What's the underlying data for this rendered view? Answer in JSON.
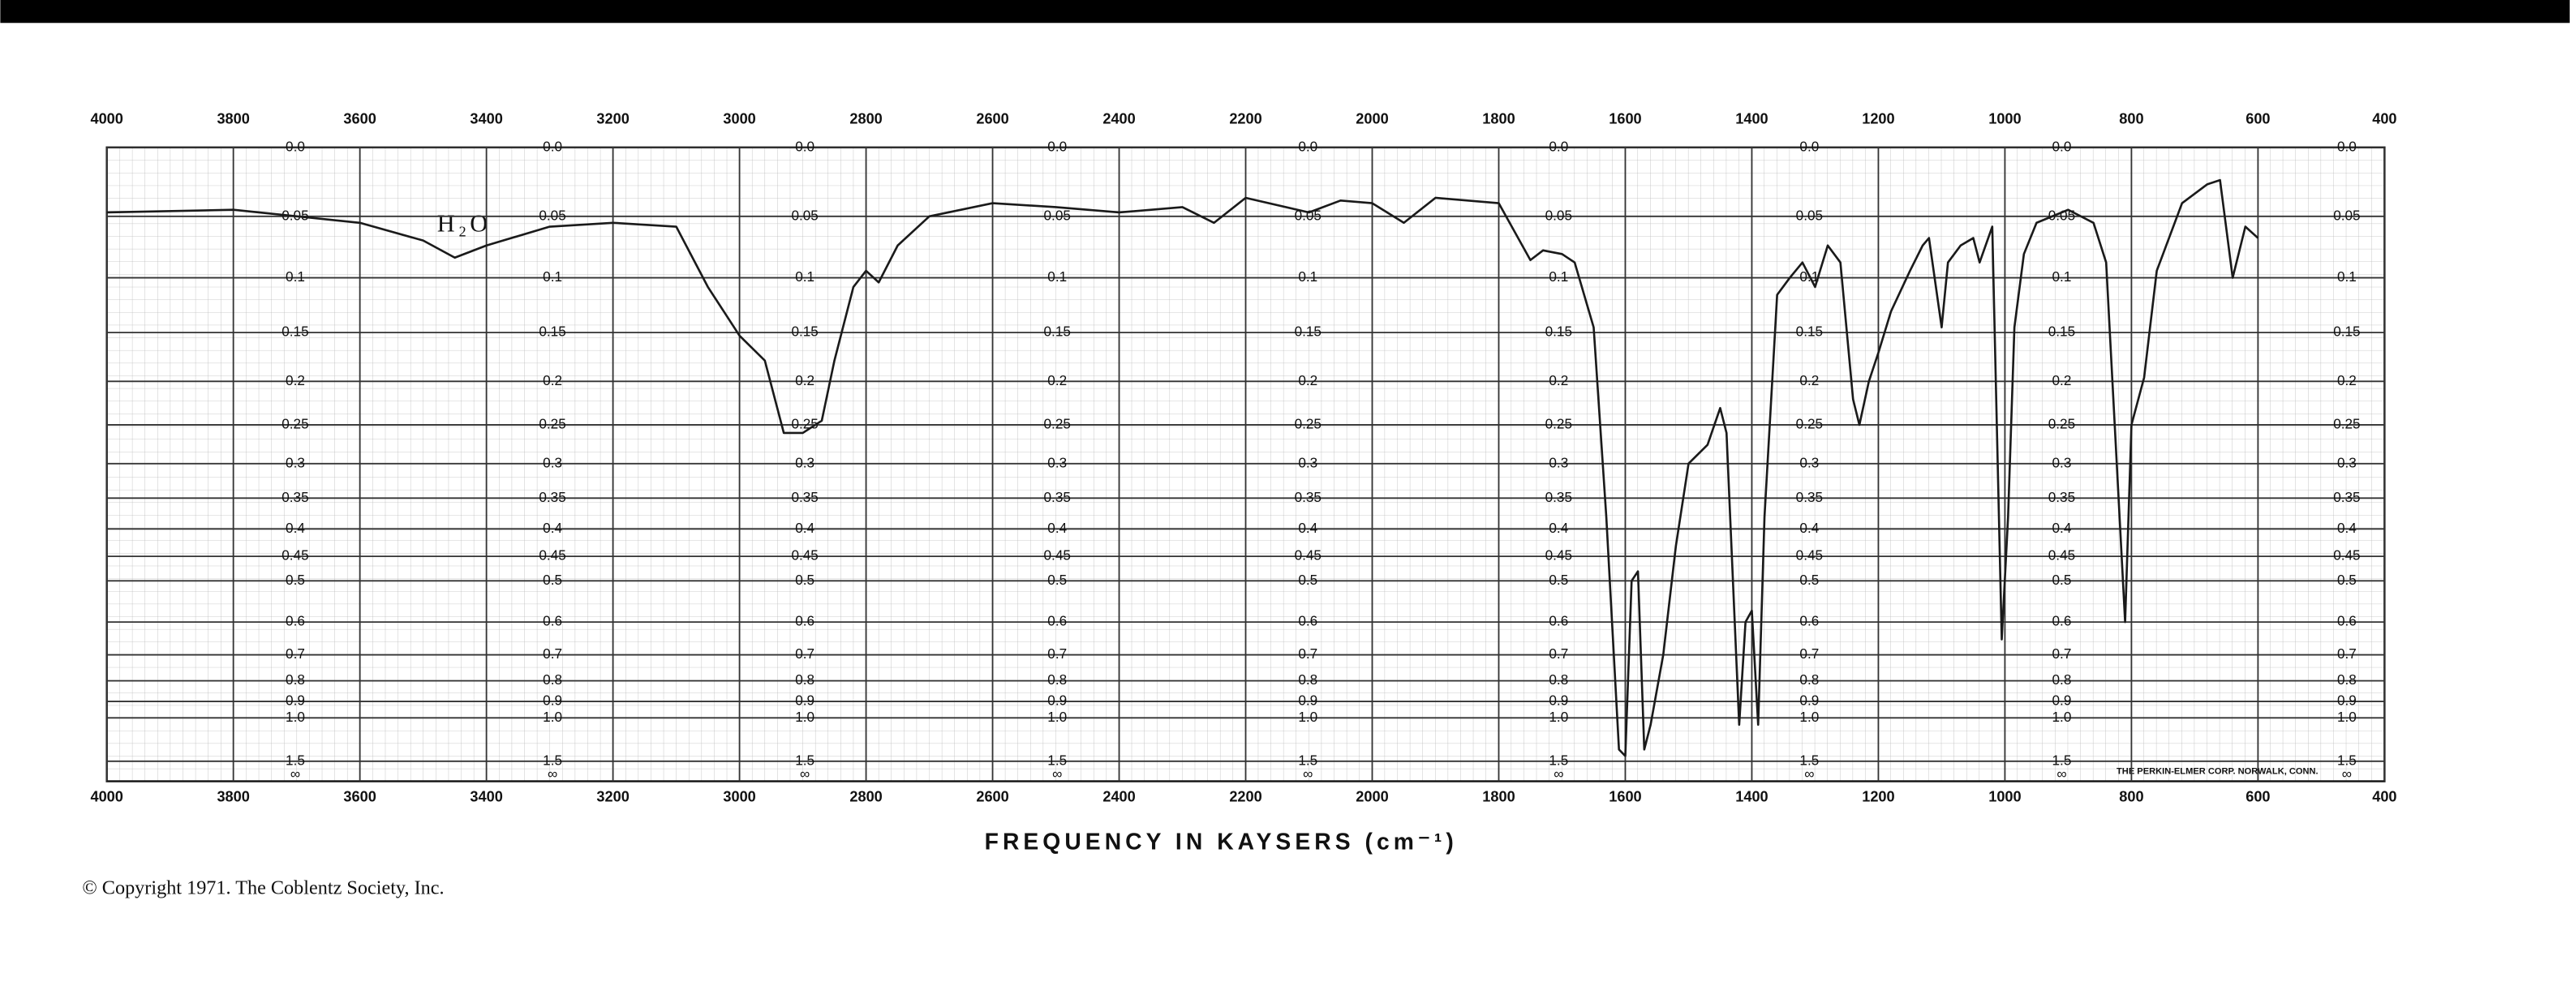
{
  "chart_data": {
    "type": "line",
    "x_label": "FREQUENCY IN KAYSERS (cm⁻¹)",
    "annotations": [
      "H₂O",
      "THE PERKIN-ELMER CORP. NORWALK, CONN."
    ],
    "copyright": "© Copyright 1971. The Coblentz Society, Inc.",
    "y_scale": "absorbance",
    "grid": true,
    "color": "#1a1a1a",
    "xlim": [
      4000,
      400
    ],
    "ylim": [
      0,
      null
    ],
    "xticks": [
      4000,
      3800,
      3600,
      3400,
      3200,
      3000,
      2800,
      2600,
      2400,
      2200,
      2000,
      1800,
      1600,
      1400,
      1200,
      1000,
      800,
      600,
      400
    ],
    "yticks": [
      {
        "value": 0,
        "label": "0.0"
      },
      0.05,
      0.1,
      0.15,
      0.2,
      0.25,
      0.3,
      0.35,
      0.4,
      0.45,
      0.5,
      0.6,
      0.7,
      0.8,
      0.9,
      {
        "value": 1,
        "label": "1.0"
      },
      1.5,
      {
        "value": null,
        "label": "∞"
      }
    ],
    "x": [
      4000,
      3800,
      3600,
      3500,
      3450,
      3400,
      3300,
      3200,
      3100,
      3050,
      3000,
      2960,
      2930,
      2900,
      2870,
      2850,
      2820,
      2800,
      2780,
      2750,
      2700,
      2600,
      2500,
      2400,
      2300,
      2250,
      2200,
      2100,
      2050,
      2000,
      1950,
      1900,
      1800,
      1750,
      1730,
      1700,
      1680,
      1650,
      1630,
      1610,
      1600,
      1590,
      1580,
      1570,
      1560,
      1540,
      1520,
      1500,
      1470,
      1450,
      1440,
      1420,
      1410,
      1400,
      1390,
      1380,
      1360,
      1340,
      1320,
      1300,
      1280,
      1260,
      1240,
      1230,
      1215,
      1200,
      1180,
      1150,
      1130,
      1120,
      1100,
      1090,
      1070,
      1050,
      1040,
      1020,
      1005,
      995,
      985,
      970,
      950,
      900,
      860,
      840,
      810,
      800,
      780,
      760,
      720,
      680,
      660,
      640,
      620,
      600
    ],
    "values": [
      0.047,
      0.045,
      0.055,
      0.069,
      0.083,
      0.073,
      0.058,
      0.055,
      0.058,
      0.108,
      0.153,
      0.178,
      0.26,
      0.26,
      0.245,
      0.178,
      0.108,
      0.094,
      0.104,
      0.073,
      0.05,
      0.04,
      0.043,
      0.047,
      0.043,
      0.055,
      0.036,
      0.047,
      0.038,
      0.04,
      0.055,
      0.036,
      0.04,
      0.085,
      0.077,
      0.08,
      0.087,
      0.145,
      0.38,
      1.3,
      1.4,
      0.5,
      0.48,
      1.3,
      1.05,
      0.7,
      0.43,
      0.3,
      0.275,
      0.23,
      0.26,
      1.05,
      0.6,
      0.57,
      1.05,
      0.38,
      0.115,
      0.1,
      0.087,
      0.108,
      0.073,
      0.087,
      0.22,
      0.25,
      0.2,
      0.17,
      0.13,
      0.094,
      0.073,
      0.067,
      0.145,
      0.087,
      0.073,
      0.067,
      0.087,
      0.058,
      0.65,
      0.38,
      0.145,
      0.08,
      0.055,
      0.045,
      0.055,
      0.087,
      0.6,
      0.25,
      0.196,
      0.094,
      0.04,
      0.026,
      0.023,
      0.1,
      0.058,
      0.067
    ]
  }
}
